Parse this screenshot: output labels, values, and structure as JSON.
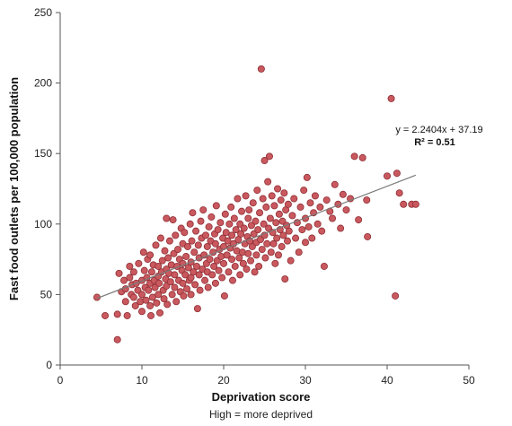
{
  "chart_data": {
    "type": "scatter",
    "xlabel": "Deprivation score",
    "xlabel_note": "High = more deprived",
    "ylabel": "Fast food outlets per 100,000 population",
    "xlim": [
      0,
      50
    ],
    "ylim": [
      0,
      250
    ],
    "x_ticks": [
      0,
      10,
      20,
      30,
      40,
      50
    ],
    "y_ticks": [
      0,
      50,
      100,
      150,
      200,
      250
    ],
    "x_tick_labels": [
      "0",
      "10",
      "20",
      "30",
      "40",
      "50"
    ],
    "y_tick_labels": [
      "0",
      "50",
      "100",
      "150",
      "200",
      "250"
    ],
    "grid": false,
    "legend": "none",
    "marker_color": "#c9595f",
    "marker_edge_color": "#8e2f34",
    "trendline": {
      "slope": 2.2404,
      "intercept": 37.19,
      "x_range": [
        4.5,
        43.5
      ],
      "color": "#7a7a7a"
    },
    "annotation": {
      "equation": "y = 2.2404x + 37.19",
      "r_squared": "R² = 0.51"
    },
    "points": [
      [
        4.5,
        48
      ],
      [
        5.5,
        35
      ],
      [
        7,
        36
      ],
      [
        7,
        18
      ],
      [
        7.2,
        65
      ],
      [
        7.5,
        52
      ],
      [
        7.8,
        60
      ],
      [
        8,
        54
      ],
      [
        8,
        45
      ],
      [
        8.2,
        35
      ],
      [
        8.5,
        70
      ],
      [
        8.5,
        62
      ],
      [
        8.7,
        50
      ],
      [
        8.8,
        57
      ],
      [
        9,
        66
      ],
      [
        9,
        48
      ],
      [
        9.2,
        42
      ],
      [
        9.3,
        58
      ],
      [
        9.5,
        53
      ],
      [
        9.6,
        72
      ],
      [
        9.8,
        45
      ],
      [
        10,
        60
      ],
      [
        10,
        50
      ],
      [
        10,
        38
      ],
      [
        10.2,
        80
      ],
      [
        10.3,
        67
      ],
      [
        10.4,
        55
      ],
      [
        10.5,
        46
      ],
      [
        10.6,
        62
      ],
      [
        10.7,
        75
      ],
      [
        10.8,
        53
      ],
      [
        11,
        78
      ],
      [
        11,
        58
      ],
      [
        11,
        42
      ],
      [
        11.1,
        35
      ],
      [
        11.2,
        66
      ],
      [
        11.3,
        48
      ],
      [
        11.4,
        71
      ],
      [
        11.5,
        60
      ],
      [
        11.6,
        55
      ],
      [
        11.7,
        85
      ],
      [
        11.8,
        44
      ],
      [
        12,
        70
      ],
      [
        12,
        63
      ],
      [
        12,
        50
      ],
      [
        12.1,
        58
      ],
      [
        12.2,
        37
      ],
      [
        12.3,
        90
      ],
      [
        12.4,
        66
      ],
      [
        12.5,
        74
      ],
      [
        12.6,
        53
      ],
      [
        12.7,
        47
      ],
      [
        12.8,
        81
      ],
      [
        12.9,
        61
      ],
      [
        13,
        104
      ],
      [
        13,
        68
      ],
      [
        13,
        56
      ],
      [
        13.1,
        43
      ],
      [
        13.2,
        76
      ],
      [
        13.3,
        65
      ],
      [
        13.4,
        88
      ],
      [
        13.5,
        59
      ],
      [
        13.6,
        71
      ],
      [
        13.7,
        50
      ],
      [
        13.8,
        103
      ],
      [
        13.9,
        79
      ],
      [
        14,
        64
      ],
      [
        14,
        55
      ],
      [
        14.1,
        92
      ],
      [
        14.2,
        45
      ],
      [
        14.3,
        70
      ],
      [
        14.4,
        82
      ],
      [
        14.5,
        60
      ],
      [
        14.6,
        75
      ],
      [
        14.7,
        52
      ],
      [
        14.8,
        97
      ],
      [
        14.9,
        67
      ],
      [
        15,
        86
      ],
      [
        15,
        72
      ],
      [
        15,
        58
      ],
      [
        15.1,
        49
      ],
      [
        15.2,
        94
      ],
      [
        15.3,
        64
      ],
      [
        15.4,
        77
      ],
      [
        15.5,
        54
      ],
      [
        15.6,
        84
      ],
      [
        15.7,
        69
      ],
      [
        15.8,
        60
      ],
      [
        15.9,
        100
      ],
      [
        16,
        73
      ],
      [
        16,
        62
      ],
      [
        16,
        50
      ],
      [
        16.1,
        88
      ],
      [
        16.2,
        108
      ],
      [
        16.3,
        66
      ],
      [
        16.4,
        80
      ],
      [
        16.5,
        57
      ],
      [
        16.6,
        95
      ],
      [
        16.7,
        70
      ],
      [
        16.8,
        40
      ],
      [
        16.9,
        85
      ],
      [
        17,
        64
      ],
      [
        17,
        76
      ],
      [
        17.1,
        53
      ],
      [
        17.2,
        102
      ],
      [
        17.3,
        90
      ],
      [
        17.4,
        68
      ],
      [
        17.5,
        110
      ],
      [
        17.6,
        78
      ],
      [
        17.7,
        60
      ],
      [
        17.8,
        92
      ],
      [
        17.9,
        72
      ],
      [
        18,
        84
      ],
      [
        18,
        66
      ],
      [
        18.1,
        55
      ],
      [
        18.2,
        98
      ],
      [
        18.3,
        75
      ],
      [
        18.4,
        88
      ],
      [
        18.5,
        105
      ],
      [
        18.6,
        64
      ],
      [
        18.7,
        80
      ],
      [
        18.8,
        70
      ],
      [
        18.9,
        93
      ],
      [
        19,
        58
      ],
      [
        19,
        86
      ],
      [
        19.1,
        113
      ],
      [
        19.2,
        74
      ],
      [
        19.3,
        96
      ],
      [
        19.4,
        67
      ],
      [
        19.5,
        82
      ],
      [
        19.6,
        101
      ],
      [
        19.7,
        77
      ],
      [
        19.8,
        62
      ],
      [
        19.9,
        90
      ],
      [
        20,
        84
      ],
      [
        20,
        72
      ],
      [
        20.1,
        49
      ],
      [
        20.2,
        107
      ],
      [
        20.3,
        94
      ],
      [
        20.4,
        78
      ],
      [
        20.5,
        88
      ],
      [
        20.6,
        66
      ],
      [
        20.7,
        100
      ],
      [
        20.8,
        83
      ],
      [
        20.9,
        112
      ],
      [
        21,
        75
      ],
      [
        21,
        92
      ],
      [
        21.1,
        60
      ],
      [
        21.2,
        86
      ],
      [
        21.3,
        104
      ],
      [
        21.4,
        70
      ],
      [
        21.5,
        96
      ],
      [
        21.6,
        81
      ],
      [
        21.7,
        118
      ],
      [
        21.8,
        89
      ],
      [
        21.9,
        76
      ],
      [
        22,
        100
      ],
      [
        22,
        64
      ],
      [
        22.1,
        93
      ],
      [
        22.2,
        109
      ],
      [
        22.3,
        80
      ],
      [
        22.4,
        72
      ],
      [
        22.5,
        97
      ],
      [
        22.6,
        86
      ],
      [
        22.7,
        120
      ],
      [
        22.8,
        68
      ],
      [
        22.9,
        91
      ],
      [
        23,
        104
      ],
      [
        23,
        79
      ],
      [
        23.1,
        110
      ],
      [
        23.2,
        88
      ],
      [
        23.3,
        74
      ],
      [
        23.4,
        99
      ],
      [
        23.5,
        84
      ],
      [
        23.6,
        115
      ],
      [
        23.7,
        93
      ],
      [
        23.8,
        66
      ],
      [
        23.9,
        102
      ],
      [
        24,
        87
      ],
      [
        24,
        78
      ],
      [
        24.1,
        124
      ],
      [
        24.2,
        96
      ],
      [
        24.3,
        70
      ],
      [
        24.4,
        108
      ],
      [
        24.5,
        89
      ],
      [
        24.6,
        210
      ],
      [
        24.7,
        82
      ],
      [
        24.8,
        118
      ],
      [
        24.9,
        100
      ],
      [
        25,
        145
      ],
      [
        25,
        92
      ],
      [
        25.1,
        76
      ],
      [
        25.2,
        112
      ],
      [
        25.3,
        86
      ],
      [
        25.4,
        130
      ],
      [
        25.5,
        97
      ],
      [
        25.6,
        148
      ],
      [
        25.7,
        104
      ],
      [
        25.8,
        80
      ],
      [
        25.9,
        120
      ],
      [
        26,
        94
      ],
      [
        26.1,
        86
      ],
      [
        26.2,
        113
      ],
      [
        26.3,
        72
      ],
      [
        26.4,
        101
      ],
      [
        26.5,
        90
      ],
      [
        26.6,
        125
      ],
      [
        26.7,
        78
      ],
      [
        26.8,
        107
      ],
      [
        26.9,
        96
      ],
      [
        27,
        117
      ],
      [
        27.1,
        84
      ],
      [
        27.2,
        102
      ],
      [
        27.3,
        92
      ],
      [
        27.4,
        122
      ],
      [
        27.5,
        61
      ],
      [
        27.6,
        110
      ],
      [
        27.7,
        99
      ],
      [
        27.8,
        88
      ],
      [
        27.9,
        114
      ],
      [
        28,
        95
      ],
      [
        28.2,
        74
      ],
      [
        28.4,
        106
      ],
      [
        28.6,
        118
      ],
      [
        28.8,
        90
      ],
      [
        29,
        101
      ],
      [
        29.2,
        80
      ],
      [
        29.4,
        112
      ],
      [
        29.6,
        96
      ],
      [
        29.8,
        124
      ],
      [
        30,
        104
      ],
      [
        30,
        87
      ],
      [
        30.2,
        133
      ],
      [
        30.4,
        98
      ],
      [
        30.6,
        115
      ],
      [
        30.8,
        90
      ],
      [
        31,
        108
      ],
      [
        31.2,
        120
      ],
      [
        31.5,
        100
      ],
      [
        31.8,
        112
      ],
      [
        32,
        95
      ],
      [
        32.3,
        70
      ],
      [
        32.6,
        117
      ],
      [
        33,
        109
      ],
      [
        33.3,
        104
      ],
      [
        33.6,
        128
      ],
      [
        34,
        114
      ],
      [
        34.3,
        97
      ],
      [
        34.6,
        121
      ],
      [
        35,
        110
      ],
      [
        35.5,
        118
      ],
      [
        36,
        148
      ],
      [
        36.5,
        103
      ],
      [
        37,
        147
      ],
      [
        37.5,
        117
      ],
      [
        37.6,
        91
      ],
      [
        40,
        134
      ],
      [
        40.5,
        189
      ],
      [
        41,
        49
      ],
      [
        41.2,
        136
      ],
      [
        41.5,
        122
      ],
      [
        42,
        114
      ],
      [
        43,
        114
      ],
      [
        43.5,
        114
      ]
    ]
  }
}
